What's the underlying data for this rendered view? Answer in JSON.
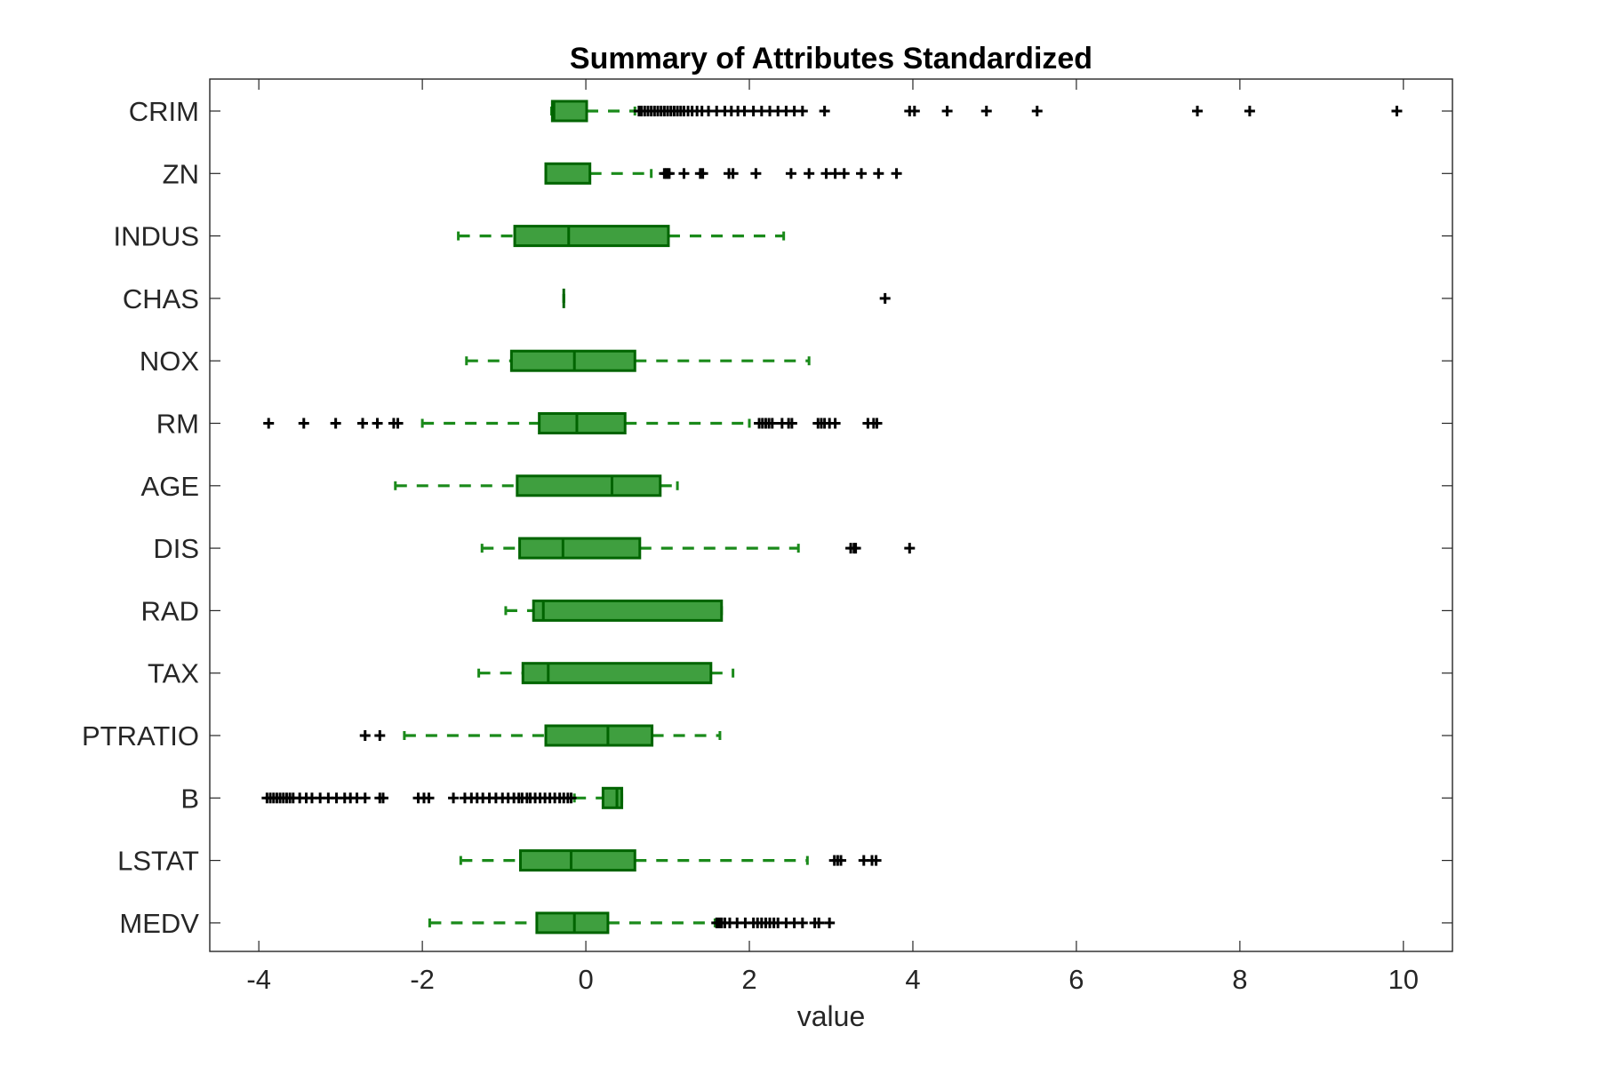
{
  "chart_data": {
    "type": "boxplot",
    "orientation": "horizontal",
    "title": "Summary of Attributes Standardized",
    "xlabel": "value",
    "ylabel": "",
    "xlim": [
      -4.6,
      10.6
    ],
    "xticks": [
      -4,
      -2,
      0,
      2,
      4,
      6,
      8,
      10
    ],
    "xtick_labels": [
      "-4",
      "-2",
      "0",
      "2",
      "4",
      "6",
      "8",
      "10"
    ],
    "grid": false,
    "legend": false,
    "colors": {
      "box_fill": "#3f9f3f",
      "box_edge": "#006400",
      "whisker": "#1a8a1a",
      "outlier": "#000000",
      "axis": "#262626"
    },
    "categories": [
      "CRIM",
      "ZN",
      "INDUS",
      "CHAS",
      "NOX",
      "RM",
      "AGE",
      "DIS",
      "RAD",
      "TAX",
      "PTRATIO",
      "B",
      "LSTAT",
      "MEDV"
    ],
    "boxes": [
      {
        "name": "CRIM",
        "whisker_low": -0.42,
        "q1": -0.41,
        "median": -0.39,
        "q3": 0.01,
        "whisker_high": 0.6,
        "outliers": [
          0.65,
          0.68,
          0.72,
          0.76,
          0.8,
          0.84,
          0.88,
          0.92,
          0.96,
          1.0,
          1.04,
          1.08,
          1.12,
          1.16,
          1.2,
          1.25,
          1.3,
          1.36,
          1.42,
          1.5,
          1.6,
          1.7,
          1.78,
          1.86,
          1.94,
          2.05,
          2.15,
          2.25,
          2.35,
          2.45,
          2.55,
          2.65,
          2.92,
          3.96,
          4.02,
          4.42,
          4.9,
          5.52,
          7.48,
          8.12,
          9.92
        ]
      },
      {
        "name": "ZN",
        "whisker_low": -0.49,
        "q1": -0.49,
        "median": -0.49,
        "q3": 0.05,
        "whisker_high": 0.8,
        "outliers": [
          0.96,
          0.98,
          1.0,
          1.02,
          1.2,
          1.4,
          1.43,
          1.75,
          1.8,
          2.08,
          2.51,
          2.73,
          2.94,
          3.05,
          3.16,
          3.37,
          3.58,
          3.8
        ]
      },
      {
        "name": "INDUS",
        "whisker_low": -1.56,
        "q1": -0.87,
        "median": -0.21,
        "q3": 1.01,
        "whisker_high": 2.42,
        "outliers": []
      },
      {
        "name": "CHAS",
        "whisker_low": -0.27,
        "q1": -0.27,
        "median": -0.27,
        "q3": -0.27,
        "whisker_high": -0.27,
        "outliers": [
          3.66
        ]
      },
      {
        "name": "NOX",
        "whisker_low": -1.46,
        "q1": -0.91,
        "median": -0.14,
        "q3": 0.6,
        "whisker_high": 2.73,
        "outliers": []
      },
      {
        "name": "RM",
        "whisker_low": -2.0,
        "q1": -0.57,
        "median": -0.11,
        "q3": 0.48,
        "whisker_high": 2.0,
        "outliers": [
          -3.88,
          -3.45,
          -3.06,
          -2.73,
          -2.55,
          -2.35,
          -2.3,
          2.12,
          2.16,
          2.2,
          2.24,
          2.28,
          2.4,
          2.48,
          2.52,
          2.84,
          2.88,
          2.92,
          2.98,
          3.05,
          3.45,
          3.52,
          3.56
        ]
      },
      {
        "name": "AGE",
        "whisker_low": -2.33,
        "q1": -0.84,
        "median": 0.32,
        "q3": 0.91,
        "whisker_high": 1.12,
        "outliers": []
      },
      {
        "name": "DIS",
        "whisker_low": -1.27,
        "q1": -0.81,
        "median": -0.28,
        "q3": 0.66,
        "whisker_high": 2.6,
        "outliers": [
          3.24,
          3.28,
          3.3,
          3.96
        ]
      },
      {
        "name": "RAD",
        "whisker_low": -0.98,
        "q1": -0.64,
        "median": -0.52,
        "q3": 1.66,
        "whisker_high": 1.66,
        "outliers": []
      },
      {
        "name": "TAX",
        "whisker_low": -1.31,
        "q1": -0.77,
        "median": -0.46,
        "q3": 1.53,
        "whisker_high": 1.8,
        "outliers": []
      },
      {
        "name": "PTRATIO",
        "whisker_low": -2.22,
        "q1": -0.49,
        "median": 0.27,
        "q3": 0.81,
        "whisker_high": 1.64,
        "outliers": [
          -2.7,
          -2.52
        ]
      },
      {
        "name": "B",
        "whisker_low": -0.14,
        "q1": 0.21,
        "median": 0.38,
        "q3": 0.44,
        "whisker_high": 0.44,
        "outliers": [
          -3.9,
          -3.86,
          -3.82,
          -3.78,
          -3.74,
          -3.7,
          -3.66,
          -3.62,
          -3.58,
          -3.5,
          -3.42,
          -3.35,
          -3.25,
          -3.15,
          -3.05,
          -2.95,
          -2.88,
          -2.8,
          -2.7,
          -2.52,
          -2.48,
          -2.05,
          -1.98,
          -1.92,
          -1.62,
          -1.48,
          -1.4,
          -1.33,
          -1.26,
          -1.18,
          -1.1,
          -1.02,
          -0.95,
          -0.88,
          -0.82,
          -0.78,
          -0.72,
          -0.68,
          -0.62,
          -0.56,
          -0.5,
          -0.44,
          -0.38,
          -0.32,
          -0.27,
          -0.22,
          -0.18
        ]
      },
      {
        "name": "LSTAT",
        "whisker_low": -1.53,
        "q1": -0.8,
        "median": -0.18,
        "q3": 0.6,
        "whisker_high": 2.71,
        "outliers": [
          3.04,
          3.08,
          3.12,
          3.4,
          3.5,
          3.55
        ]
      },
      {
        "name": "MEDV",
        "whisker_low": -1.91,
        "q1": -0.6,
        "median": -0.14,
        "q3": 0.27,
        "whisker_high": 1.58,
        "outliers": [
          1.6,
          1.63,
          1.66,
          1.7,
          1.76,
          1.85,
          1.95,
          2.05,
          2.1,
          2.15,
          2.2,
          2.25,
          2.3,
          2.35,
          2.45,
          2.55,
          2.65,
          2.8,
          2.85,
          2.98
        ]
      }
    ]
  }
}
